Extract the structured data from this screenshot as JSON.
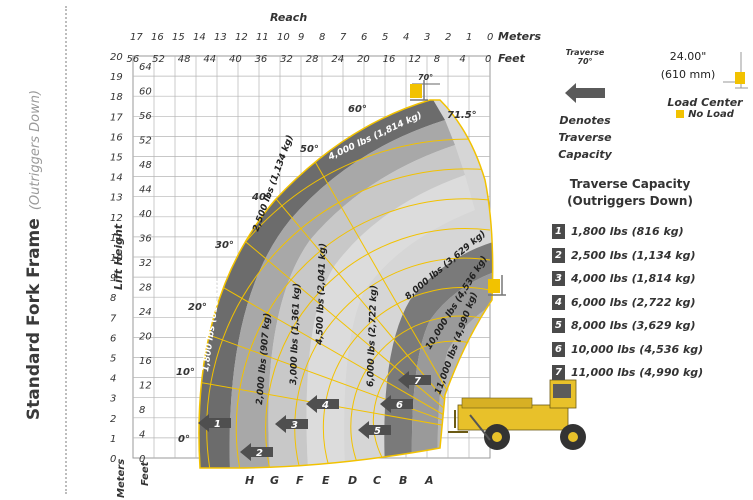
{
  "sidebar": {
    "title": "Standard Fork Frame",
    "subtitle": "(Outriggers Down)"
  },
  "chart_data": {
    "type": "load chart",
    "top_axis": {
      "label": "Reach",
      "meters_label": "Meters",
      "feet_label": "Feet",
      "meters_ticks": [
        17,
        16,
        15,
        14,
        13,
        12,
        11,
        10,
        9,
        8,
        7,
        6,
        5,
        4,
        3,
        2,
        1,
        0
      ],
      "feet_ticks": [
        56,
        52,
        48,
        44,
        40,
        36,
        32,
        28,
        24,
        20,
        16,
        12,
        8,
        4,
        0
      ]
    },
    "left_axis": {
      "label": "Lift Height",
      "meters_label": "Meters",
      "feet_label": "Feet",
      "meters_ticks": [
        20,
        19,
        18,
        17,
        16,
        15,
        14,
        13,
        12,
        11,
        10,
        9,
        8,
        7,
        6,
        5,
        4,
        3,
        2,
        1,
        0
      ],
      "feet_ticks": [
        64,
        60,
        56,
        52,
        48,
        44,
        40,
        36,
        32,
        28,
        24,
        20,
        16,
        12,
        8,
        4,
        0
      ]
    },
    "angle_labels": [
      "0°",
      "10°",
      "20°",
      "30°",
      "40°",
      "50°",
      "60°",
      "71.5°"
    ],
    "traverse_angle": "70°",
    "capacity_zones": [
      "1,800 lbs (816 kg)",
      "2,000 lbs (907 kg)",
      "2,500 lbs (1,134 kg)",
      "3,000 lbs (1,361 kg)",
      "4,000 lbs (1,814 kg)",
      "4,500 lbs (2,041 kg)",
      "6,000 lbs (2,722 kg)",
      "8,000 lbs (3,629 kg)",
      "10,000 lbs (4,536 kg)",
      "11,000 lbs (4,990 kg)"
    ],
    "extension_letters": [
      "H",
      "G",
      "F",
      "E",
      "D",
      "C",
      "B",
      "A"
    ],
    "traverse_arrows": [
      "1",
      "2",
      "3",
      "4",
      "5",
      "6",
      "7"
    ]
  },
  "legend": {
    "traverse_key": "Traverse",
    "traverse_angle": "70°",
    "denotes_line1": "Denotes Traverse",
    "denotes_line2": "Capacity",
    "load_center_value": "24.00\"",
    "load_center_metric": "(610 mm)",
    "load_center_label": "Load Center",
    "no_load_label": "No Load"
  },
  "traverse_capacity": {
    "title_line1": "Traverse Capacity",
    "title_line2": "(Outriggers Down)",
    "items": [
      {
        "num": "1",
        "text": "1,800 lbs (816 kg)"
      },
      {
        "num": "2",
        "text": "2,500 lbs (1,134 kg)"
      },
      {
        "num": "3",
        "text": "4,000 lbs (1,814 kg)"
      },
      {
        "num": "4",
        "text": "6,000 lbs (2,722 kg)"
      },
      {
        "num": "5",
        "text": "8,000 lbs (3,629 kg)"
      },
      {
        "num": "6",
        "text": "10,000 lbs (4,536 kg)"
      },
      {
        "num": "7",
        "text": "11,000 lbs (4,990 kg)"
      }
    ]
  },
  "colors": {
    "accent_yellow": "#f2c200",
    "zone_dark": "#6e6e6e",
    "zone_mid": "#a8a8a8",
    "zone_light": "#d8d8d8",
    "grid": "#9a9a9a"
  }
}
